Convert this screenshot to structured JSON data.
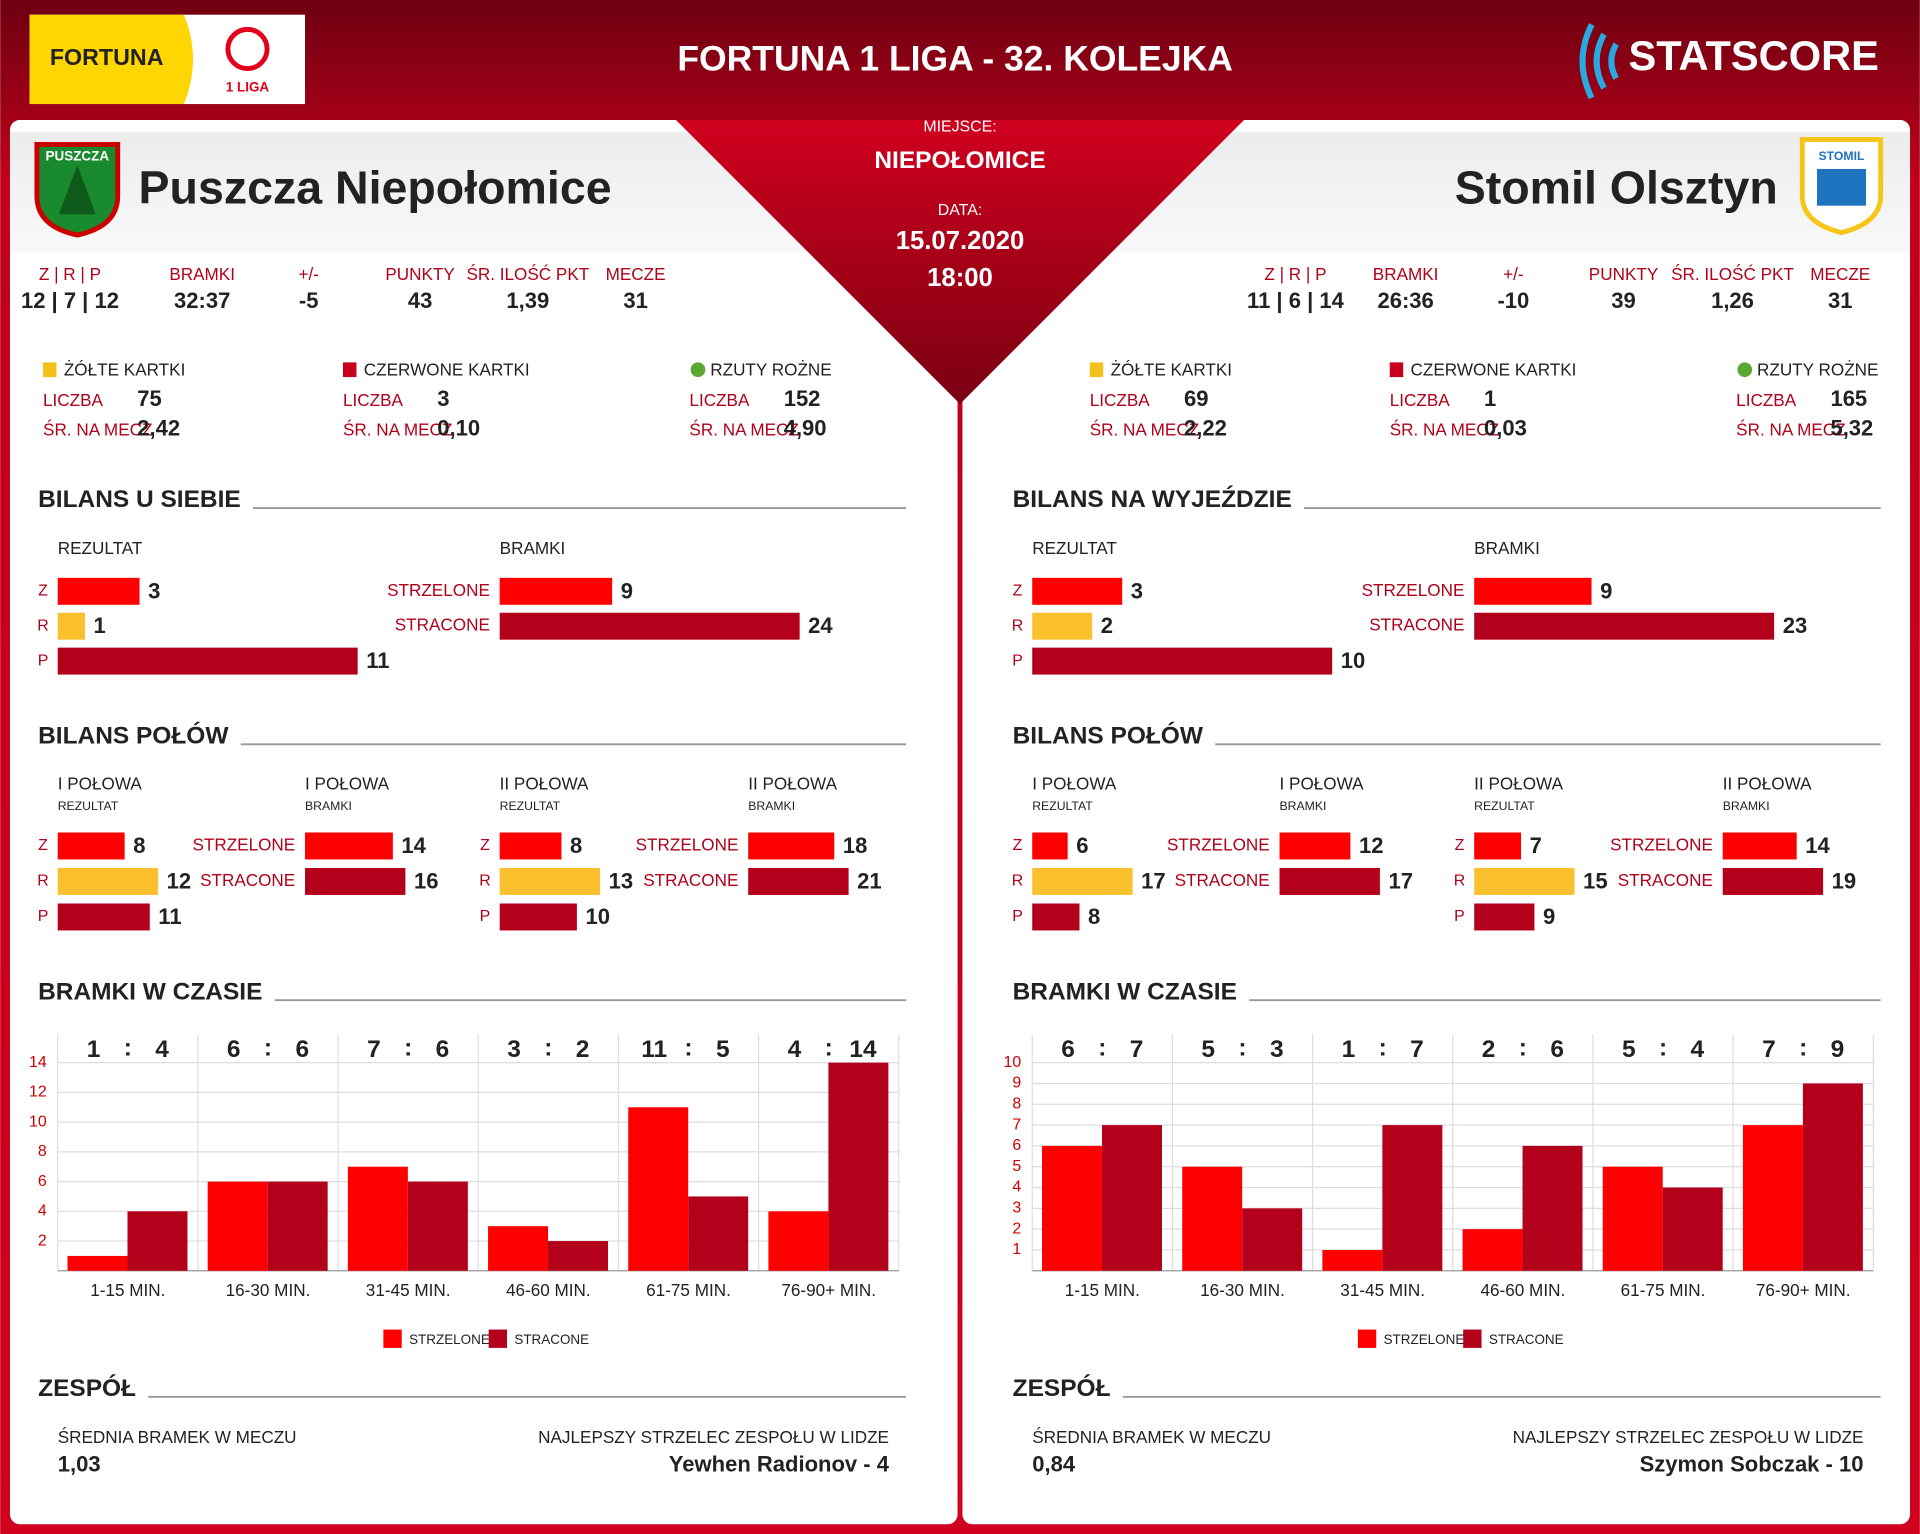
{
  "header": {
    "sponsor": "FORTUNA",
    "league": "1 LIGA",
    "title": "FORTUNA 1 LIGA - 32. KOLEJKA",
    "brand": "STATSCORE"
  },
  "match": {
    "venue_label": "MIEJSCE:",
    "venue": "NIEPOŁOMICE",
    "date_label": "DATA:",
    "date": "15.07.2020",
    "time": "18:00"
  },
  "labels": {
    "stats": [
      "Z | R | P",
      "BRAMKI",
      "+/-",
      "PUNKTY",
      "ŚR. ILOŚĆ PKT",
      "MECZE"
    ],
    "yellow": "ŻÓŁTE KARTKI",
    "red": "CZERWONE KARTKI",
    "corners": "RZUTY ROŻNE",
    "count": "LICZBA",
    "avg": "ŚR. NA MECZ",
    "result": "REZULTAT",
    "goals": "BRAMKI",
    "scored": "STRZELONE",
    "conceded": "STRACONE",
    "outcomes": [
      "Z",
      "R",
      "P"
    ],
    "halves_title": "BILANS POŁÓW",
    "halves": [
      "I POŁOWA",
      "II POŁOWA"
    ],
    "time_title": "BRAMKI W CZASIE",
    "periods": [
      "1-15 MIN.",
      "16-30 MIN.",
      "31-45 MIN.",
      "46-60 MIN.",
      "61-75 MIN.",
      "76-90+ MIN."
    ],
    "team_title": "ZESPÓŁ",
    "avg_goals": "ŚREDNIA BRAMEK W MECZU",
    "top_scorer": "NAJLEPSZY STRZELEC ZESPOŁU W LIDZE"
  },
  "colors": {
    "scored": "#ff0000",
    "conceded": "#b3001b",
    "draw": "#fbc02d"
  },
  "teams": [
    {
      "name": "Puszcza Niepołomice",
      "logo": "PUSZCZA",
      "stats": [
        "12 | 7 | 12",
        "32:37",
        -5,
        43,
        "1,39",
        31
      ],
      "cards": {
        "yellow": {
          "count": 75,
          "avg": "2,42"
        },
        "red": {
          "count": 3,
          "avg": "0,10"
        },
        "corners": {
          "count": 152,
          "avg": "4,90"
        }
      },
      "record_title": "BILANS U SIEBIE",
      "record": {
        "results": [
          3,
          1,
          11
        ],
        "goals": [
          9,
          24
        ]
      },
      "halves": [
        {
          "results": [
            8,
            12,
            11
          ],
          "goals": [
            14,
            16
          ]
        },
        {
          "results": [
            8,
            13,
            10
          ],
          "goals": [
            18,
            21
          ]
        }
      ],
      "time": {
        "ylim": [
          0,
          14
        ],
        "yticks": [
          2,
          4,
          6,
          8,
          10,
          12,
          14
        ],
        "series": [
          {
            "values": [
              1,
              6,
              7,
              3,
              11,
              4
            ]
          },
          {
            "values": [
              4,
              6,
              6,
              2,
              5,
              14
            ]
          }
        ]
      },
      "avg_goals": "1,03",
      "top_scorer": "Yewhen Radionov - 4"
    },
    {
      "name": "Stomil Olsztyn",
      "logo": "STOMIL",
      "stats": [
        "11 | 6 | 14",
        "26:36",
        -10,
        39,
        "1,26",
        31
      ],
      "cards": {
        "yellow": {
          "count": 69,
          "avg": "2,22"
        },
        "red": {
          "count": 1,
          "avg": "0,03"
        },
        "corners": {
          "count": 165,
          "avg": "5,32"
        }
      },
      "record_title": "BILANS NA WYJEŹDZIE",
      "record": {
        "results": [
          3,
          2,
          10
        ],
        "goals": [
          9,
          23
        ]
      },
      "halves": [
        {
          "results": [
            6,
            17,
            8
          ],
          "goals": [
            12,
            17
          ]
        },
        {
          "results": [
            7,
            15,
            9
          ],
          "goals": [
            14,
            19
          ]
        }
      ],
      "time": {
        "ylim": [
          0,
          10
        ],
        "yticks": [
          1,
          2,
          3,
          4,
          5,
          6,
          7,
          8,
          9,
          10
        ],
        "series": [
          {
            "values": [
              6,
              5,
              1,
              2,
              5,
              7
            ]
          },
          {
            "values": [
              7,
              3,
              7,
              6,
              4,
              9
            ]
          }
        ]
      },
      "avg_goals": "0,84",
      "top_scorer": "Szymon Sobczak - 10"
    }
  ]
}
